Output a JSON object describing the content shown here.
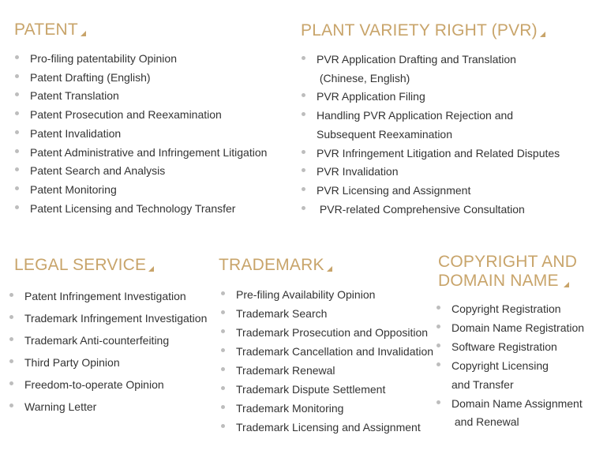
{
  "accent_color": "#c8a46a",
  "bullet_color": "#bdbdbd",
  "text_color": "#333333",
  "patent": {
    "title": "PATENT",
    "items": [
      "Pro-filing patentability Opinion",
      "Patent Drafting (English)",
      "Patent Translation",
      "Patent Prosecution and Reexamination",
      "Patent Invalidation",
      "Patent Administrative and Infringement Litigation",
      "Patent Search and Analysis",
      "Patent Monitoring",
      "Patent Licensing and Technology Transfer"
    ]
  },
  "pvr": {
    "title": "PLANT VARIETY RIGHT (PVR)",
    "items": [
      [
        "PVR Application Drafting and Translation",
        " (Chinese, English)"
      ],
      [
        "PVR Application Filing"
      ],
      [
        "Handling PVR Application Rejection and",
        "Subsequent Reexamination"
      ],
      [
        "PVR Infringement Litigation and Related Disputes"
      ],
      [
        "PVR Invalidation"
      ],
      [
        "PVR Licensing and Assignment"
      ],
      [
        " PVR-related Comprehensive Consultation"
      ]
    ]
  },
  "legal": {
    "title": "LEGAL SERVICE",
    "items": [
      "Patent Infringement Investigation",
      "Trademark Infringement Investigation",
      "Trademark Anti-counterfeiting",
      "Third Party Opinion",
      "Freedom-to-operate Opinion",
      "Warning Letter"
    ]
  },
  "trademark": {
    "title": "TRADEMARK",
    "items": [
      "Pre-filing Availability Opinion",
      "Trademark Search",
      "Trademark Prosecution and Opposition",
      "Trademark Cancellation and Invalidation",
      "Trademark Renewal",
      "Trademark Dispute Settlement",
      "Trademark Monitoring",
      "Trademark Licensing and Assignment"
    ]
  },
  "copyright": {
    "title_line1": "COPYRIGHT AND",
    "title_line2": "DOMAIN NAME",
    "items": [
      [
        "Copyright Registration"
      ],
      [
        "Domain Name Registration"
      ],
      [
        "Software Registration"
      ],
      [
        "Copyright Licensing",
        "and Transfer"
      ],
      [
        "Domain Name Assignment",
        " and Renewal"
      ]
    ]
  }
}
